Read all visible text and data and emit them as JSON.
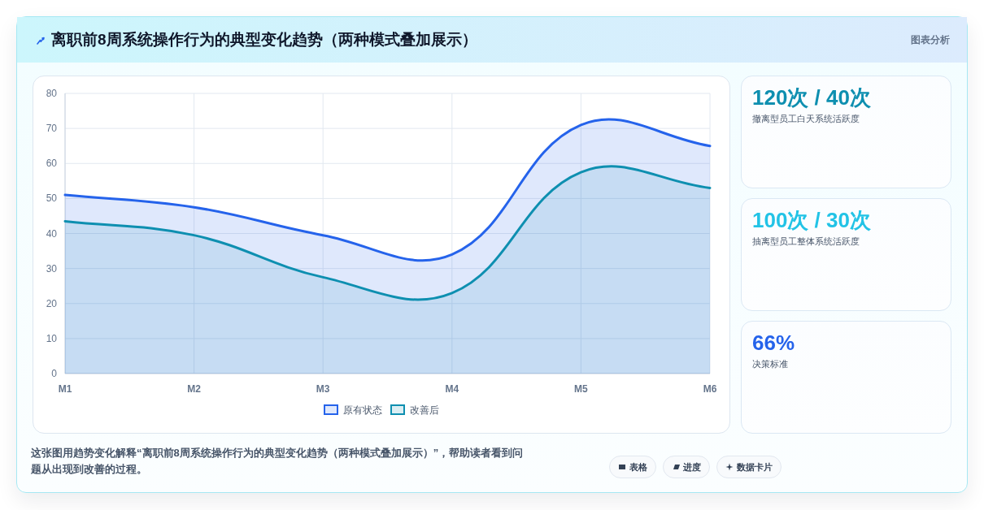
{
  "chart_data": [
    {
      "type": "area",
      "title": "离职前8周系统操作行为的典型变化趋势（两种模式叠加展示）",
      "annotations": [
        "图表分析",
        "这张图用趋势变化解释“离职前8周系统操作行为的典型变化趋势（两种模式叠加展示）”，帮助读者看到问题从出现到改善的过程。",
        "表格",
        "进度",
        "数据卡片"
      ],
      "categories": [
        "M1",
        "M2",
        "M3",
        "M4",
        "M5",
        "M6"
      ],
      "series": [
        {
          "name": "原有状态",
          "color": "#2563eb",
          "values": [
            51,
            47.5,
            39.5,
            34,
            71,
            65
          ]
        },
        {
          "name": "改善后",
          "color": "#0e8fb0",
          "values": [
            43.5,
            39.5,
            27.5,
            23,
            57.5,
            53
          ]
        }
      ],
      "ylim": [
        0,
        80
      ],
      "yticks": [
        0,
        10,
        20,
        30,
        40,
        50,
        60,
        70,
        80
      ],
      "grid": true,
      "legend": "bottom"
    },
    {
      "type": "other",
      "title": "120次 / 40次",
      "subtitle": "撤离型员工白天系统活跃度"
    },
    {
      "type": "other",
      "title": "100次 / 30次",
      "subtitle": "抽离型员工整体系统活跃度"
    },
    {
      "type": "other",
      "title": "66%",
      "subtitle": "决策标准"
    }
  ]
}
